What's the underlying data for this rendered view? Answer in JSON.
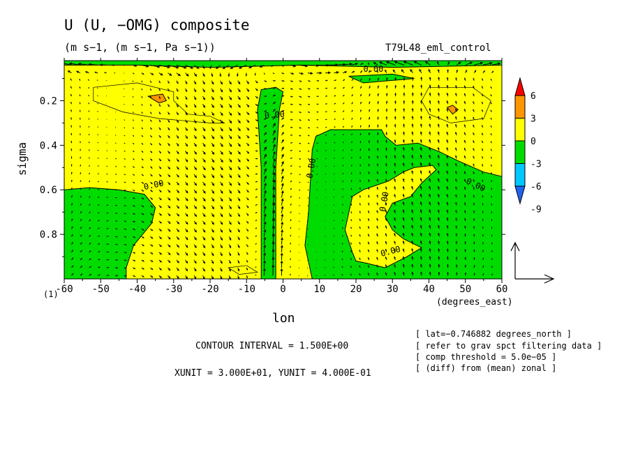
{
  "chart_data": {
    "type": "heatmap",
    "title": "U (U, −OMG) composite",
    "subtitle": "(m s−1, (m s−1, Pa s−1))",
    "run_name": "T79L48_eml_control",
    "xlabel": "lon",
    "xunits": "(degrees_east)",
    "ylabel": "sigma",
    "xlim": [
      -60,
      60
    ],
    "ylim": [
      1.0,
      0.02
    ],
    "x_ticks": [
      -60,
      -50,
      -40,
      -30,
      -20,
      -10,
      0,
      10,
      20,
      30,
      40,
      50,
      60
    ],
    "y_ticks": [
      0.2,
      0.4,
      0.6,
      0.8
    ],
    "y_extra_label": "(1)",
    "colorbar": {
      "levels": [
        -9,
        -6,
        -3,
        0,
        3,
        6
      ],
      "colors": [
        "#1e64f0",
        "#00c8ff",
        "#00dc00",
        "#ffff00",
        "#ff9600",
        "#ff0000"
      ]
    },
    "contour_labels": [
      "0.00",
      "0.00",
      "0.00",
      "0.00",
      "0.00",
      "0.00",
      "0.00"
    ],
    "regions": [
      {
        "value_range": [
          0,
          3
        ],
        "color": "#ffff00",
        "description": "background"
      },
      {
        "value_range": [
          -3,
          0
        ],
        "lon": [
          -60,
          -35
        ],
        "sigma": [
          0.6,
          1.0
        ]
      },
      {
        "value_range": [
          -3,
          0
        ],
        "lon": [
          -5,
          -2
        ],
        "sigma": [
          0.15,
          1.0
        ]
      },
      {
        "value_range": [
          -3,
          0
        ],
        "lon": [
          8,
          60
        ],
        "sigma": [
          0.35,
          1.0
        ]
      },
      {
        "value_range": [
          0,
          3
        ],
        "lon": [
          18,
          42
        ],
        "sigma": [
          0.5,
          0.95
        ],
        "description": "inner yellow in green"
      },
      {
        "value_range": [
          3,
          6
        ],
        "lon": [
          -36,
          -32
        ],
        "sigma": [
          0.18,
          0.21
        ]
      },
      {
        "value_range": [
          3,
          6
        ],
        "lon": [
          45,
          48
        ],
        "sigma": [
          0.22,
          0.26
        ]
      }
    ],
    "vector_reference": {
      "x_unit": "3.000E+01",
      "y_unit": "4.000E-01"
    }
  },
  "footer": {
    "contour_interval": "CONTOUR INTERVAL = 1.500E+00",
    "units": "XUNIT = 3.000E+01, YUNIT = 4.000E-01",
    "info_lines": [
      "[ lat=−0.746882 degrees_north ]",
      "[ refer to grav spct filtering data ]",
      "[ comp threshold = 5.0e−05 ]",
      "[ (diff) from (mean) zonal ]"
    ]
  }
}
